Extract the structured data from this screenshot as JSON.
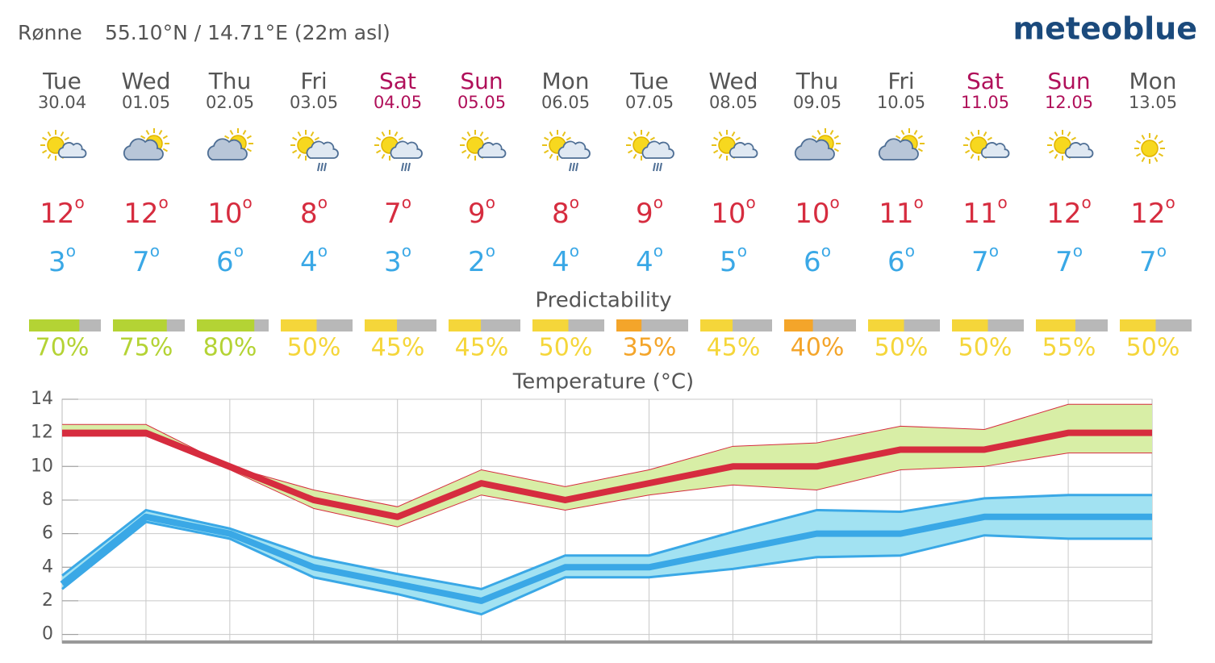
{
  "header": {
    "location": "Rønne",
    "coords": "55.10°N / 14.71°E (22m asl)",
    "brand": "meteoblue"
  },
  "degree": "o",
  "colors": {
    "weekday": "#555555",
    "weekend": "#b0105a",
    "max": "#d62c3f",
    "min": "#3aa8e6",
    "bar_rest": "#b8b8b8"
  },
  "predictability_title": "Predictability",
  "days": [
    {
      "weekday": "Tue",
      "date": "30.04",
      "weekend": false,
      "icon": "sun-cloud",
      "max": 12,
      "min": 3,
      "predictability": 70,
      "predictability_label": "70%",
      "predictability_color": "#b4d334"
    },
    {
      "weekday": "Wed",
      "date": "01.05",
      "weekend": false,
      "icon": "cloud-sun",
      "max": 12,
      "min": 7,
      "predictability": 75,
      "predictability_label": "75%",
      "predictability_color": "#b4d334"
    },
    {
      "weekday": "Thu",
      "date": "02.05",
      "weekend": false,
      "icon": "cloud-sun",
      "max": 10,
      "min": 6,
      "predictability": 80,
      "predictability_label": "80%",
      "predictability_color": "#b4d334"
    },
    {
      "weekday": "Fri",
      "date": "03.05",
      "weekend": false,
      "icon": "sun-rain",
      "max": 8,
      "min": 4,
      "predictability": 50,
      "predictability_label": "50%",
      "predictability_color": "#f5d63a"
    },
    {
      "weekday": "Sat",
      "date": "04.05",
      "weekend": true,
      "icon": "sun-rain",
      "max": 7,
      "min": 3,
      "predictability": 45,
      "predictability_label": "45%",
      "predictability_color": "#f5d63a"
    },
    {
      "weekday": "Sun",
      "date": "05.05",
      "weekend": true,
      "icon": "sun-cloud",
      "max": 9,
      "min": 2,
      "predictability": 45,
      "predictability_label": "45%",
      "predictability_color": "#f5d63a"
    },
    {
      "weekday": "Mon",
      "date": "06.05",
      "weekend": false,
      "icon": "sun-rain",
      "max": 8,
      "min": 4,
      "predictability": 50,
      "predictability_label": "50%",
      "predictability_color": "#f5d63a"
    },
    {
      "weekday": "Tue",
      "date": "07.05",
      "weekend": false,
      "icon": "sun-rain",
      "max": 9,
      "min": 4,
      "predictability": 35,
      "predictability_label": "35%",
      "predictability_color": "#f4a52a"
    },
    {
      "weekday": "Wed",
      "date": "08.05",
      "weekend": false,
      "icon": "sun-cloud",
      "max": 10,
      "min": 5,
      "predictability": 45,
      "predictability_label": "45%",
      "predictability_color": "#f5d63a"
    },
    {
      "weekday": "Thu",
      "date": "09.05",
      "weekend": false,
      "icon": "cloud-sun",
      "max": 10,
      "min": 6,
      "predictability": 40,
      "predictability_label": "40%",
      "predictability_color": "#f4a52a"
    },
    {
      "weekday": "Fri",
      "date": "10.05",
      "weekend": false,
      "icon": "cloud-sun",
      "max": 11,
      "min": 6,
      "predictability": 50,
      "predictability_label": "50%",
      "predictability_color": "#f5d63a"
    },
    {
      "weekday": "Sat",
      "date": "11.05",
      "weekend": true,
      "icon": "sun-cloud",
      "max": 11,
      "min": 7,
      "predictability": 50,
      "predictability_label": "50%",
      "predictability_color": "#f5d63a"
    },
    {
      "weekday": "Sun",
      "date": "12.05",
      "weekend": true,
      "icon": "sun-cloud",
      "max": 12,
      "min": 7,
      "predictability": 55,
      "predictability_label": "55%",
      "predictability_color": "#f5d63a"
    },
    {
      "weekday": "Mon",
      "date": "13.05",
      "weekend": false,
      "icon": "sun",
      "max": 12,
      "min": 7,
      "predictability": 50,
      "predictability_label": "50%",
      "predictability_color": "#f5d63a"
    }
  ],
  "chart_data": {
    "type": "line",
    "title": "Temperature (°C)",
    "ylim": [
      -0.5,
      14
    ],
    "yticks": [
      0,
      2,
      4,
      6,
      8,
      10,
      12,
      14
    ],
    "grid": true,
    "series": [
      {
        "color": "#d62c3f",
        "band_color": "#d8eea6",
        "edge_color": "#d62c3f",
        "values": [
          12,
          12,
          10,
          8,
          7,
          9,
          8,
          9,
          10,
          10,
          11,
          11,
          12,
          12
        ],
        "upper": [
          12.5,
          12.5,
          10,
          8.6,
          7.6,
          9.8,
          8.8,
          9.8,
          11.2,
          11.4,
          12.4,
          12.2,
          13.7,
          13.7
        ],
        "lower": [
          11.8,
          11.8,
          9.8,
          7.5,
          6.4,
          8.3,
          7.4,
          8.3,
          8.9,
          8.6,
          9.8,
          10,
          10.8,
          10.8
        ]
      },
      {
        "color": "#3aa8e6",
        "band_color": "#a2e2f2",
        "edge_color": "#3aa8e6",
        "values": [
          3,
          7,
          6,
          4,
          3,
          2,
          4,
          4,
          5,
          6,
          6,
          7,
          7,
          7
        ],
        "upper": [
          3.5,
          7.4,
          6.3,
          4.6,
          3.6,
          2.7,
          4.7,
          4.7,
          6.1,
          7.4,
          7.3,
          8.1,
          8.3,
          8.3
        ],
        "lower": [
          2.7,
          6.7,
          5.7,
          3.4,
          2.4,
          1.2,
          3.4,
          3.4,
          3.9,
          4.6,
          4.7,
          5.9,
          5.7,
          5.7
        ]
      }
    ]
  }
}
